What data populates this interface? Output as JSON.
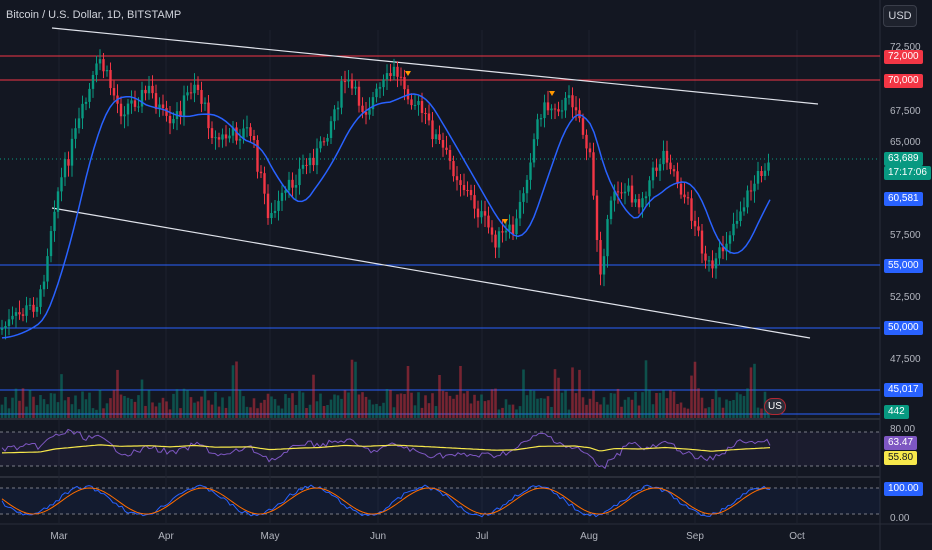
{
  "header": {
    "title": "Bitcoin / U.S. Dollar, 1D, BITSTAMP",
    "currency_button": "USD"
  },
  "price_axis": {
    "ticks": [
      "72,500",
      "67,500",
      "65,000",
      "57,500",
      "52,500",
      "47,500"
    ],
    "tags": [
      {
        "label": "72,000",
        "color": "#f23645"
      },
      {
        "label": "70,000",
        "color": "#f23645"
      },
      {
        "label": "63,689",
        "color": "#089981"
      },
      {
        "label": "17:17:06",
        "color": "#089981"
      },
      {
        "label": "60,581",
        "color": "#2962ff"
      },
      {
        "label": "55,000",
        "color": "#2962ff"
      },
      {
        "label": "50,000",
        "color": "#2962ff"
      },
      {
        "label": "45,017",
        "color": "#2962ff"
      },
      {
        "label": "442",
        "color": "#089981"
      }
    ]
  },
  "rsi_axis": {
    "ticks": [
      "80.00"
    ],
    "tags": [
      {
        "label": "63.47",
        "color": "#7e57c2"
      },
      {
        "label": "55.80",
        "color": "#f7e84b"
      }
    ]
  },
  "stoch_axis": {
    "ticks": [
      "0.00"
    ],
    "tags": [
      {
        "label": "100.00",
        "color": "#2962ff"
      }
    ]
  },
  "time_axis": [
    "Mar",
    "Apr",
    "May",
    "Jun",
    "Jul",
    "Aug",
    "Sep",
    "Oct"
  ],
  "colors": {
    "up": "#089981",
    "down": "#f23645",
    "ma": "#2962ff",
    "rsi": "#7e57c2",
    "rsi_ma": "#f7e84b",
    "stoch_k": "#2962ff",
    "stoch_d": "#ff6d00"
  },
  "flags": {
    "event_badge": "US"
  }
}
